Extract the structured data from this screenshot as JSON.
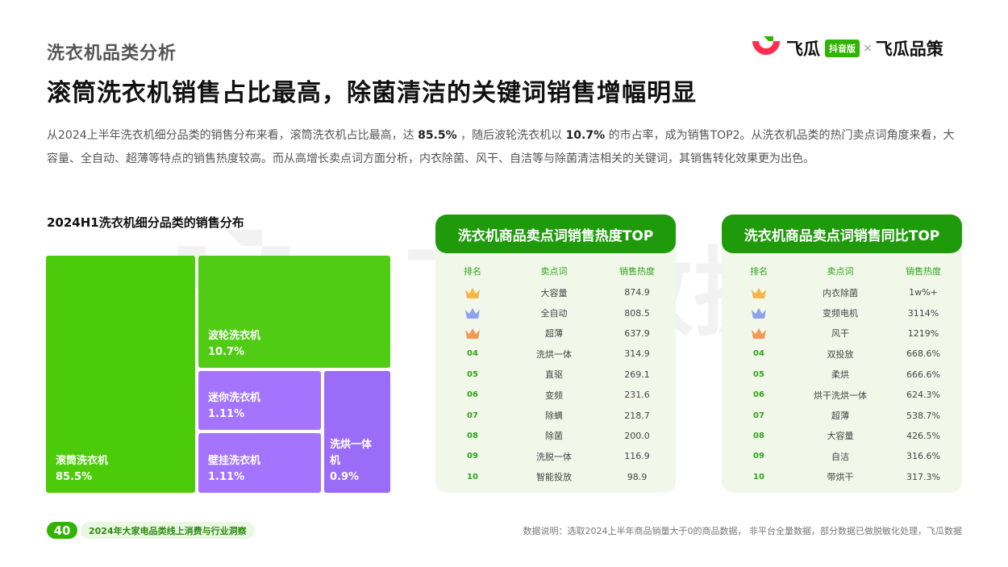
{
  "header": {
    "section_title": "洗衣机品类分析",
    "headline": "滚筒洗衣机销售占比最高，除菌清洁的关键词销售增幅明显",
    "logo": {
      "brand": "飞瓜",
      "badge": "抖音版",
      "separator": "×",
      "partner": "飞瓜品策"
    }
  },
  "intro": {
    "p1": "从2024上半年洗衣机细分品类的销售分布来看，滚筒洗衣机占比最高，达 ",
    "v1": "85.5%",
    "p2": " ，随后波轮洗衣机以 ",
    "v2": "10.7%",
    "p3": " 的市占率，成为销售TOP2。从洗衣机品类的热门卖点词角度来看，大容量、全自动、超薄等特点的销售热度较高。而从高增长卖点词方面分析，内衣除菌、风干、自洁等与除菌清洁相关的关键词，其销售转化效果更为出色。"
  },
  "watermark_text": "飞瓜数据",
  "chart_data": {
    "type": "treemap",
    "title": "2024H1洗衣机细分品类的销售分布",
    "items": [
      {
        "name": "滚筒洗衣机",
        "value": 85.5,
        "label": "85.5%",
        "color": "#4ccb0b"
      },
      {
        "name": "波轮洗衣机",
        "value": 10.7,
        "label": "10.7%",
        "color": "#51cc14"
      },
      {
        "name": "迷你洗衣机",
        "value": 1.11,
        "label": "1.11%",
        "color": "#a474ff"
      },
      {
        "name": "壁挂洗衣机",
        "value": 1.11,
        "label": "1.11%",
        "color": "#a474ff"
      },
      {
        "name": "洗烘一体机",
        "value": 0.9,
        "label": "0.9%",
        "color": "#9a6cf8"
      }
    ]
  },
  "table_hot": {
    "title": "洗衣机商品卖点词销售热度TOP",
    "headers": [
      "排名",
      "卖点词",
      "销售热度"
    ],
    "rows": [
      {
        "rank": "1",
        "word": "大容量",
        "value": "874.9"
      },
      {
        "rank": "2",
        "word": "全自动",
        "value": "808.5"
      },
      {
        "rank": "3",
        "word": "超薄",
        "value": "637.9"
      },
      {
        "rank": "04",
        "word": "洗烘一体",
        "value": "314.9"
      },
      {
        "rank": "05",
        "word": "直驱",
        "value": "269.1"
      },
      {
        "rank": "06",
        "word": "变频",
        "value": "231.6"
      },
      {
        "rank": "07",
        "word": "除螨",
        "value": "218.7"
      },
      {
        "rank": "08",
        "word": "除菌",
        "value": "200.0"
      },
      {
        "rank": "09",
        "word": "洗脱一体",
        "value": "116.9"
      },
      {
        "rank": "10",
        "word": "智能投放",
        "value": "98.9"
      }
    ]
  },
  "table_yoy": {
    "title": "洗衣机商品卖点词销售同比TOP",
    "headers": [
      "排名",
      "卖点词",
      "销售热度"
    ],
    "rows": [
      {
        "rank": "1",
        "word": "内衣除菌",
        "value": "1w%+"
      },
      {
        "rank": "2",
        "word": "变频电机",
        "value": "3114%"
      },
      {
        "rank": "3",
        "word": "风干",
        "value": "1219%"
      },
      {
        "rank": "04",
        "word": "双投放",
        "value": "668.6%"
      },
      {
        "rank": "05",
        "word": "柔烘",
        "value": "666.6%"
      },
      {
        "rank": "06",
        "word": "烘干洗烘一体",
        "value": "624.3%"
      },
      {
        "rank": "07",
        "word": "超薄",
        "value": "538.7%"
      },
      {
        "rank": "08",
        "word": "大容量",
        "value": "426.5%"
      },
      {
        "rank": "09",
        "word": "自洁",
        "value": "316.6%"
      },
      {
        "rank": "10",
        "word": "带烘干",
        "value": "317.3%"
      }
    ]
  },
  "crown_colors": [
    "#f5b54a",
    "#8ea2f0",
    "#f39a54"
  ],
  "footer": {
    "page_number": "40",
    "report_title": "2024年大家电品类线上消费与行业洞察",
    "note": "数据说明：选取2024上半年商品销量大于0的商品数据， 非平台全量数据，部分数据已做脱敏化处理，飞瓜数据"
  }
}
